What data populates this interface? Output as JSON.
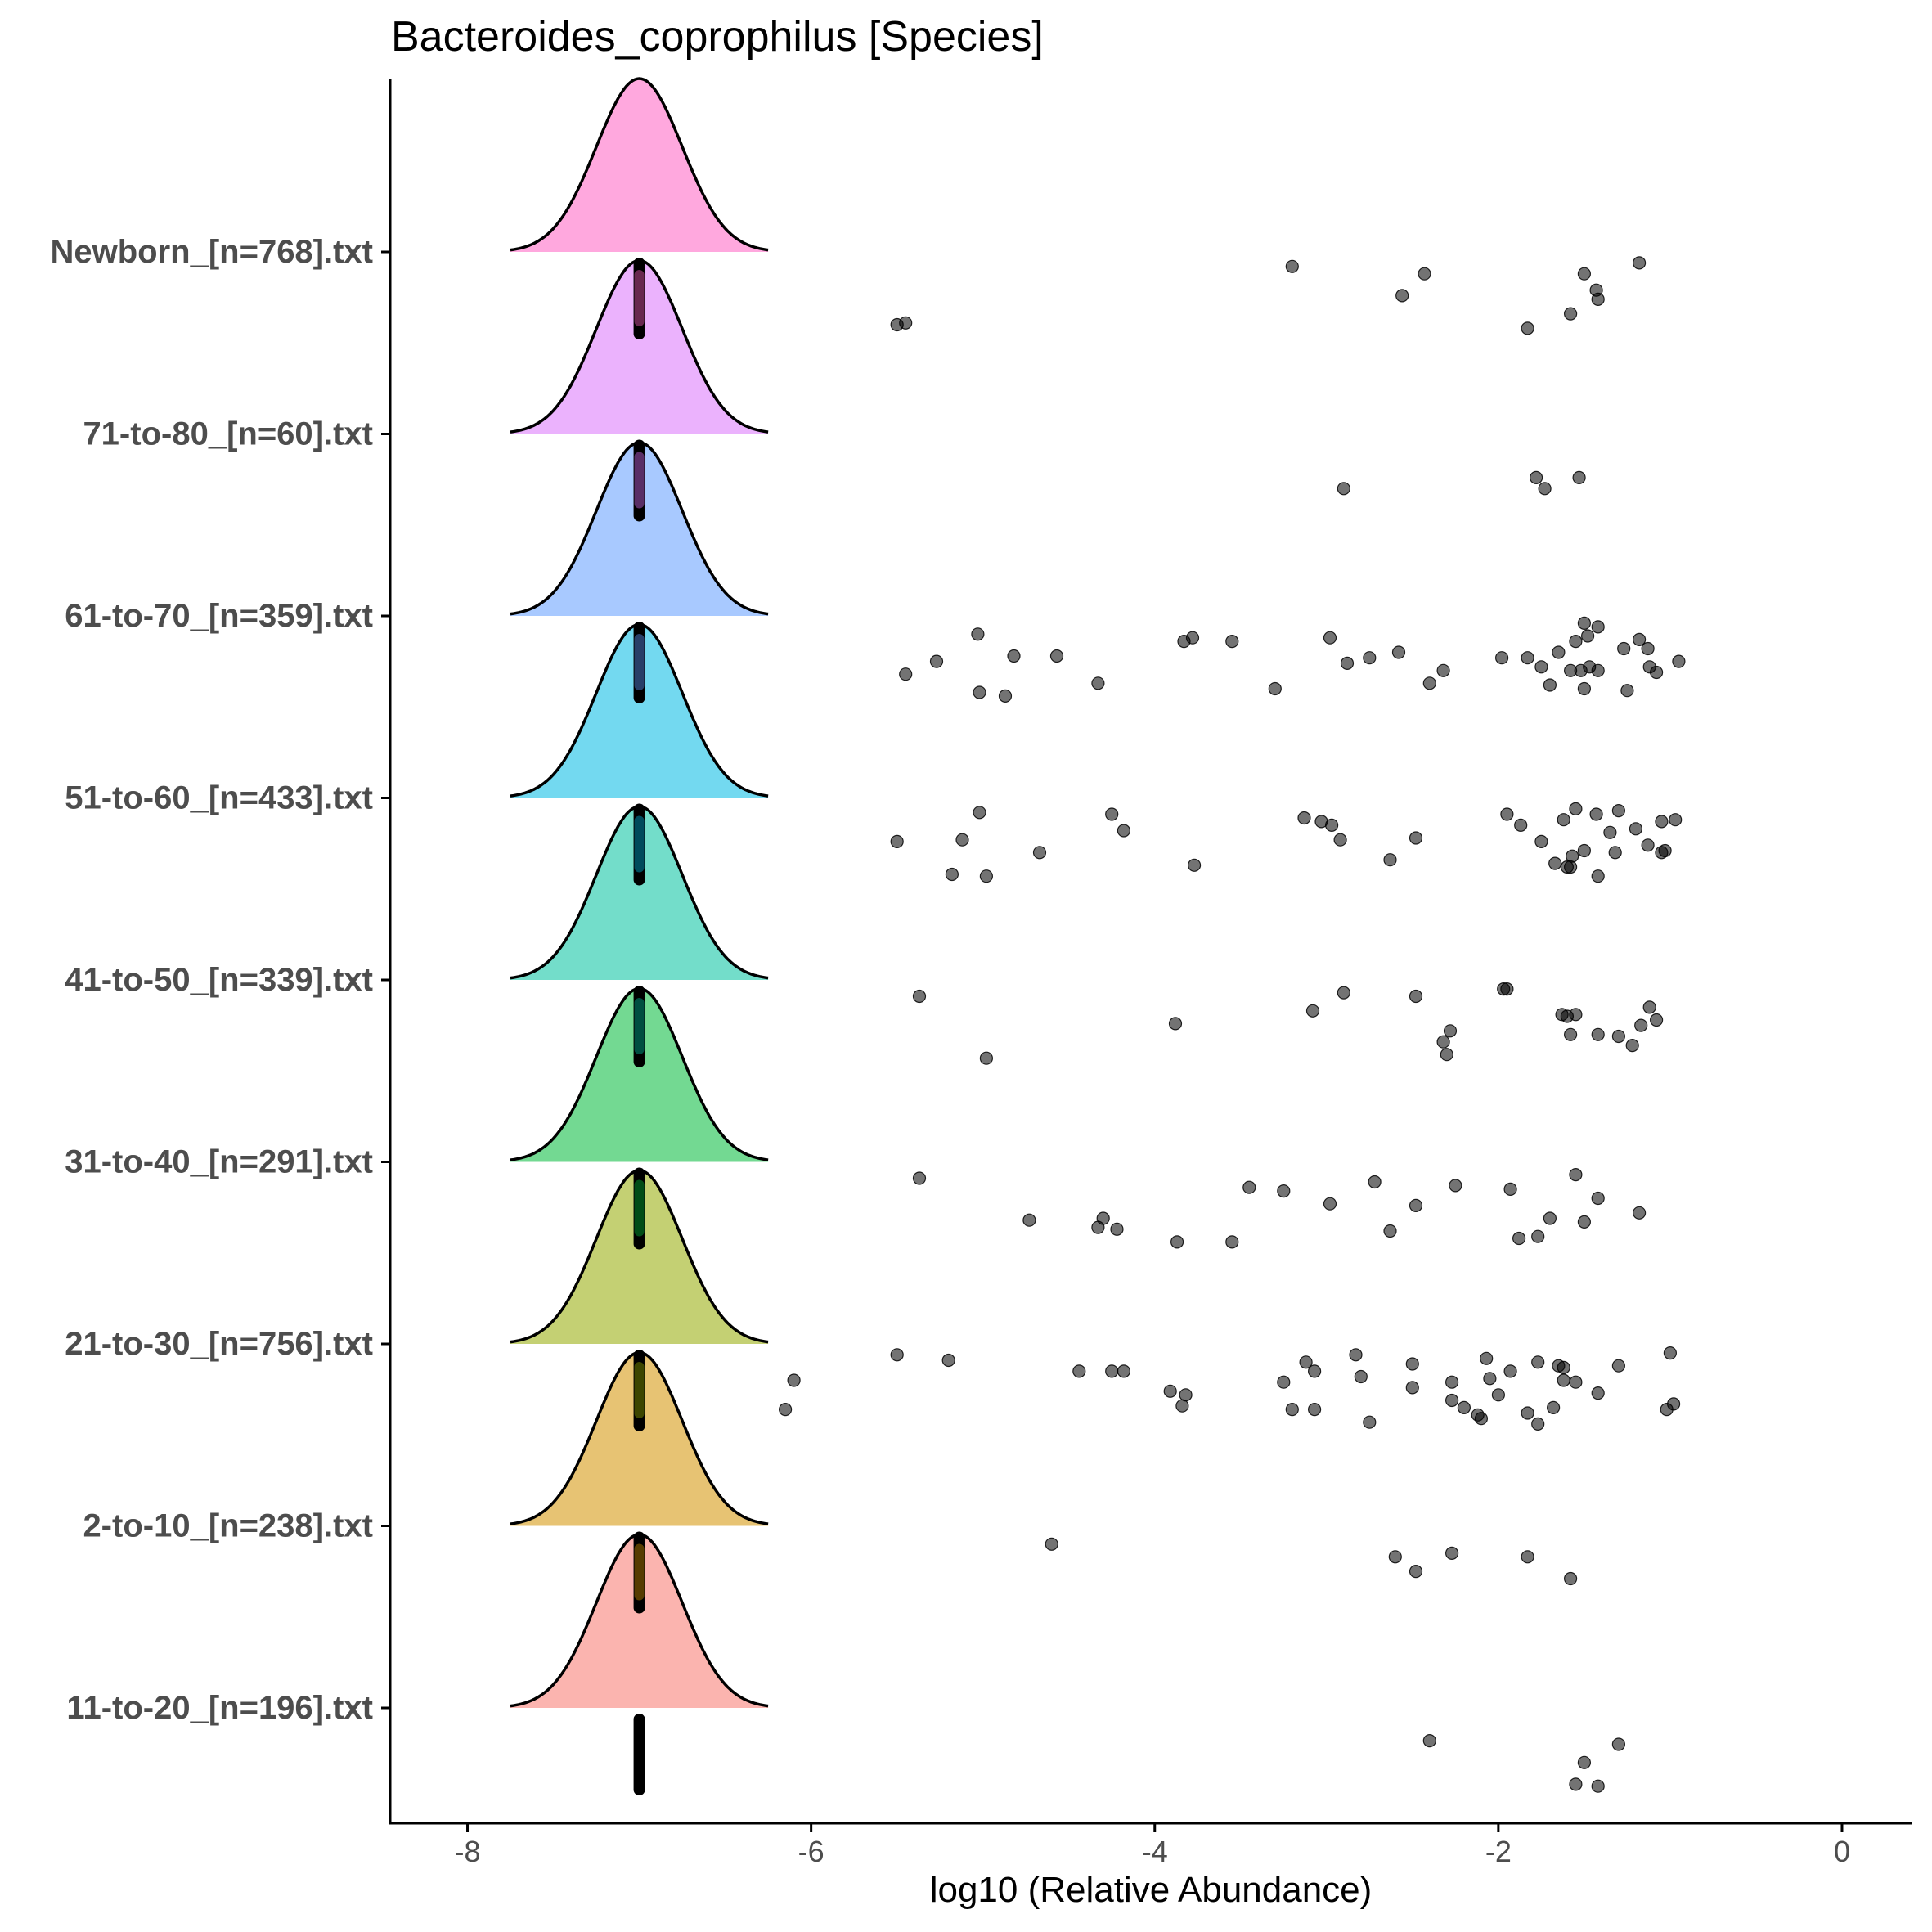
{
  "chart_data": {
    "type": "ridgeline",
    "title": "Bacteroides_coprophilus [Species]",
    "xlabel": "log10 (Relative Abundance)",
    "ylabel": "",
    "xlim": [
      -8.45,
      0.4
    ],
    "xticks": [
      -8,
      -6,
      -4,
      -2,
      0
    ],
    "xtick_labels": [
      "-8",
      "-6",
      "-4",
      "-2",
      "0"
    ],
    "grid": false,
    "legend": "none",
    "density_center": -7,
    "density_range": [
      -7.75,
      -6.25
    ],
    "groups": [
      {
        "label": "11-to-20_[n=196].txt",
        "color": "#F8766D",
        "points": [
          [
            -2.4,
            -0.18
          ],
          [
            -1.3,
            -0.2
          ],
          [
            -1.5,
            -0.3
          ],
          [
            -1.55,
            -0.42
          ],
          [
            -1.42,
            -0.43
          ]
        ]
      },
      {
        "label": "2-to-10_[n=238].txt",
        "color": "#D39200",
        "points": [
          [
            -4.6,
            -0.1
          ],
          [
            -2.6,
            -0.17
          ],
          [
            -2.48,
            -0.25
          ],
          [
            -2.27,
            -0.15
          ],
          [
            -1.83,
            -0.17
          ],
          [
            -1.58,
            -0.29
          ]
        ]
      },
      {
        "label": "21-to-30_[n=756].txt",
        "color": "#93AA00",
        "points": [
          [
            -6.1,
            -0.2
          ],
          [
            -6.15,
            -0.36
          ],
          [
            -5.5,
            -0.06
          ],
          [
            -5.2,
            -0.09
          ],
          [
            -4.44,
            -0.15
          ],
          [
            -4.25,
            -0.15
          ],
          [
            -4.18,
            -0.15
          ],
          [
            -3.91,
            -0.26
          ],
          [
            -3.82,
            -0.28
          ],
          [
            -3.84,
            -0.34
          ],
          [
            -3.25,
            -0.21
          ],
          [
            -3.2,
            -0.36
          ],
          [
            -3.12,
            -0.1
          ],
          [
            -3.07,
            -0.15
          ],
          [
            -3.07,
            -0.36
          ],
          [
            -2.83,
            -0.06
          ],
          [
            -2.8,
            -0.18
          ],
          [
            -2.75,
            -0.43
          ],
          [
            -2.5,
            -0.11
          ],
          [
            -2.5,
            -0.24
          ],
          [
            -2.27,
            -0.21
          ],
          [
            -2.27,
            -0.31
          ],
          [
            -2.2,
            -0.35
          ],
          [
            -2.12,
            -0.39
          ],
          [
            -2.1,
            -0.41
          ],
          [
            -2.07,
            -0.08
          ],
          [
            -2.05,
            -0.19
          ],
          [
            -2.0,
            -0.28
          ],
          [
            -1.93,
            -0.15
          ],
          [
            -1.83,
            -0.38
          ],
          [
            -1.77,
            -0.1
          ],
          [
            -1.77,
            -0.44
          ],
          [
            -1.68,
            -0.35
          ],
          [
            -1.65,
            -0.12
          ],
          [
            -1.62,
            -0.13
          ],
          [
            -1.62,
            -0.2
          ],
          [
            -1.55,
            -0.21
          ],
          [
            -1.3,
            -0.12
          ],
          [
            -1.42,
            -0.27
          ],
          [
            -1.0,
            -0.05
          ],
          [
            -0.98,
            -0.33
          ],
          [
            -1.02,
            -0.36
          ]
        ]
      },
      {
        "label": "31-to-40_[n=291].txt",
        "color": "#00BA38",
        "points": [
          [
            -5.37,
            -0.09
          ],
          [
            -4.73,
            -0.32
          ],
          [
            -4.33,
            -0.36
          ],
          [
            -4.3,
            -0.31
          ],
          [
            -4.22,
            -0.37
          ],
          [
            -3.87,
            -0.44
          ],
          [
            -3.55,
            -0.44
          ],
          [
            -3.45,
            -0.14
          ],
          [
            -3.25,
            -0.16
          ],
          [
            -2.98,
            -0.23
          ],
          [
            -2.72,
            -0.11
          ],
          [
            -2.63,
            -0.38
          ],
          [
            -2.48,
            -0.24
          ],
          [
            -2.25,
            -0.13
          ],
          [
            -1.93,
            -0.15
          ],
          [
            -1.88,
            -0.42
          ],
          [
            -1.77,
            -0.41
          ],
          [
            -1.7,
            -0.31
          ],
          [
            -1.55,
            -0.07
          ],
          [
            -1.5,
            -0.33
          ],
          [
            -1.42,
            -0.2
          ],
          [
            -1.18,
            -0.28
          ]
        ]
      },
      {
        "label": "41-to-50_[n=339].txt",
        "color": "#00C19F",
        "points": [
          [
            -5.37,
            -0.09
          ],
          [
            -4.98,
            -0.43
          ],
          [
            -3.88,
            -0.24
          ],
          [
            -3.08,
            -0.17
          ],
          [
            -2.9,
            -0.07
          ],
          [
            -2.48,
            -0.09
          ],
          [
            -2.28,
            -0.28
          ],
          [
            -2.32,
            -0.34
          ],
          [
            -2.3,
            -0.41
          ],
          [
            -1.97,
            -0.05
          ],
          [
            -1.63,
            -0.19
          ],
          [
            -1.6,
            -0.2
          ],
          [
            -1.58,
            -0.3
          ],
          [
            -1.55,
            -0.19
          ],
          [
            -1.42,
            -0.3
          ],
          [
            -1.3,
            -0.31
          ],
          [
            -1.22,
            -0.36
          ],
          [
            -1.17,
            -0.25
          ],
          [
            -1.12,
            -0.15
          ],
          [
            -1.08,
            -0.22
          ],
          [
            -1.95,
            -0.05
          ]
        ]
      },
      {
        "label": "51-to-60_[n=433].txt",
        "color": "#00B9E3",
        "points": [
          [
            -5.5,
            -0.24
          ],
          [
            -5.02,
            -0.08
          ],
          [
            -5.12,
            -0.23
          ],
          [
            -5.18,
            -0.42
          ],
          [
            -4.98,
            -0.43
          ],
          [
            -4.67,
            -0.3
          ],
          [
            -4.25,
            -0.09
          ],
          [
            -4.18,
            -0.18
          ],
          [
            -3.77,
            -0.37
          ],
          [
            -3.13,
            -0.11
          ],
          [
            -3.03,
            -0.13
          ],
          [
            -2.97,
            -0.15
          ],
          [
            -2.92,
            -0.23
          ],
          [
            -2.63,
            -0.34
          ],
          [
            -2.48,
            -0.22
          ],
          [
            -1.95,
            -0.09
          ],
          [
            -1.87,
            -0.15
          ],
          [
            -1.75,
            -0.24
          ],
          [
            -1.67,
            -0.36
          ],
          [
            -1.62,
            -0.12
          ],
          [
            -1.6,
            -0.38
          ],
          [
            -1.57,
            -0.32
          ],
          [
            -1.55,
            -0.06
          ],
          [
            -1.5,
            -0.29
          ],
          [
            -1.43,
            -0.09
          ],
          [
            -1.42,
            -0.43
          ],
          [
            -1.35,
            -0.19
          ],
          [
            -1.3,
            -0.07
          ],
          [
            -1.32,
            -0.3
          ],
          [
            -1.2,
            -0.17
          ],
          [
            -1.13,
            -0.26
          ],
          [
            -1.05,
            -0.13
          ],
          [
            -1.05,
            -0.3
          ],
          [
            -1.03,
            -0.29
          ],
          [
            -0.97,
            -0.12
          ],
          [
            -1.58,
            -0.38
          ]
        ]
      },
      {
        "label": "61-to-70_[n=359].txt",
        "color": "#619CFF",
        "points": [
          [
            -5.45,
            -0.32
          ],
          [
            -5.03,
            -0.1
          ],
          [
            -5.02,
            -0.42
          ],
          [
            -5.27,
            -0.25
          ],
          [
            -4.87,
            -0.44
          ],
          [
            -4.82,
            -0.22
          ],
          [
            -4.57,
            -0.22
          ],
          [
            -4.33,
            -0.37
          ],
          [
            -3.83,
            -0.14
          ],
          [
            -3.78,
            -0.12
          ],
          [
            -3.55,
            -0.14
          ],
          [
            -3.3,
            -0.4
          ],
          [
            -2.98,
            -0.12
          ],
          [
            -2.88,
            -0.26
          ],
          [
            -2.75,
            -0.23
          ],
          [
            -2.58,
            -0.2
          ],
          [
            -2.4,
            -0.37
          ],
          [
            -2.32,
            -0.3
          ],
          [
            -1.98,
            -0.23
          ],
          [
            -1.83,
            -0.23
          ],
          [
            -1.75,
            -0.28
          ],
          [
            -1.7,
            -0.38
          ],
          [
            -1.65,
            -0.2
          ],
          [
            -1.58,
            -0.3
          ],
          [
            -1.55,
            -0.14
          ],
          [
            -1.5,
            -0.04
          ],
          [
            -1.48,
            -0.11
          ],
          [
            -1.5,
            -0.4
          ],
          [
            -1.47,
            -0.28
          ],
          [
            -1.42,
            -0.06
          ],
          [
            -1.52,
            -0.3
          ],
          [
            -1.42,
            -0.3
          ],
          [
            -1.27,
            -0.18
          ],
          [
            -1.25,
            -0.41
          ],
          [
            -1.18,
            -0.13
          ],
          [
            -1.13,
            -0.18
          ],
          [
            -1.12,
            -0.28
          ],
          [
            -1.08,
            -0.31
          ],
          [
            -0.95,
            -0.25
          ]
        ]
      },
      {
        "label": "71-to-80_[n=60].txt",
        "color": "#DB72FB",
        "points": [
          [
            -2.9,
            -0.3
          ],
          [
            -1.78,
            -0.24
          ],
          [
            -1.73,
            -0.3
          ],
          [
            -1.53,
            -0.24
          ]
        ]
      },
      {
        "label": "Newborn_[n=768].txt",
        "color": "#FF61C3",
        "points": [
          [
            -5.5,
            -0.4
          ],
          [
            -5.45,
            -0.39
          ],
          [
            -3.2,
            -0.08
          ],
          [
            -2.56,
            -0.24
          ],
          [
            -2.43,
            -0.12
          ],
          [
            -1.83,
            -0.42
          ],
          [
            -1.58,
            -0.34
          ],
          [
            -1.5,
            -0.12
          ],
          [
            -1.43,
            -0.21
          ],
          [
            -1.42,
            -0.26
          ],
          [
            -1.18,
            -0.06
          ]
        ]
      }
    ]
  }
}
